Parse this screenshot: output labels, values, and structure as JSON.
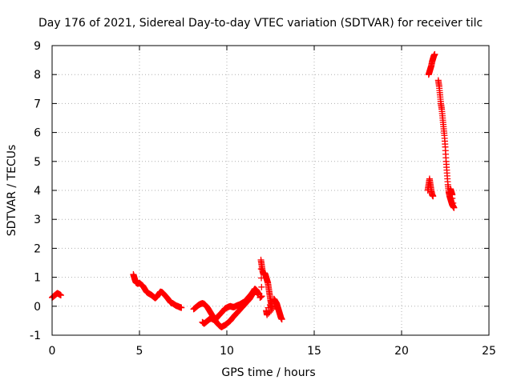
{
  "colors": {
    "series": "#ff0000",
    "axis": "#000000",
    "grid": "#b0b0b0"
  },
  "chart_data": {
    "type": "scatter",
    "title": "Day 176 of 2021, Sidereal Day-to-day VTEC variation (SDTVAR) for receiver tilc",
    "xlabel": "GPS time / hours",
    "ylabel": "SDTVAR / TECUs",
    "xlim": [
      0,
      25
    ],
    "ylim": [
      -1,
      9
    ],
    "xticks": [
      0,
      5,
      10,
      15,
      20,
      25
    ],
    "yticks": [
      -1,
      0,
      1,
      2,
      3,
      4,
      5,
      6,
      7,
      8,
      9
    ],
    "grid": true,
    "marker": "plus",
    "series": [
      {
        "name": "SDTVAR",
        "segments": [
          [
            [
              0.0,
              0.3
            ],
            [
              0.1,
              0.35
            ],
            [
              0.2,
              0.4
            ],
            [
              0.3,
              0.45
            ],
            [
              0.4,
              0.42
            ],
            [
              0.5,
              0.38
            ]
          ],
          [
            [
              4.65,
              1.1
            ],
            [
              4.7,
              1.0
            ],
            [
              4.75,
              0.9
            ],
            [
              4.8,
              0.82
            ],
            [
              4.9,
              0.78
            ],
            [
              5.0,
              0.8
            ],
            [
              5.1,
              0.75
            ],
            [
              5.2,
              0.7
            ],
            [
              5.3,
              0.6
            ],
            [
              5.4,
              0.5
            ],
            [
              5.5,
              0.45
            ],
            [
              5.6,
              0.42
            ],
            [
              5.7,
              0.38
            ],
            [
              5.8,
              0.33
            ],
            [
              5.9,
              0.28
            ],
            [
              6.0,
              0.33
            ],
            [
              6.1,
              0.42
            ],
            [
              6.2,
              0.5
            ],
            [
              6.3,
              0.48
            ],
            [
              6.4,
              0.42
            ],
            [
              6.5,
              0.35
            ],
            [
              6.6,
              0.28
            ],
            [
              6.7,
              0.2
            ],
            [
              6.8,
              0.12
            ],
            [
              6.9,
              0.1
            ],
            [
              7.0,
              0.06
            ],
            [
              7.1,
              0.02
            ],
            [
              7.2,
              0.0
            ],
            [
              7.3,
              -0.03
            ],
            [
              7.4,
              -0.05
            ]
          ],
          [
            [
              8.1,
              -0.1
            ],
            [
              8.2,
              -0.05
            ],
            [
              8.3,
              0.0
            ],
            [
              8.4,
              0.05
            ],
            [
              8.5,
              0.08
            ],
            [
              8.6,
              0.1
            ],
            [
              8.7,
              0.08
            ],
            [
              8.8,
              0.02
            ],
            [
              8.9,
              -0.05
            ],
            [
              9.0,
              -0.15
            ],
            [
              9.1,
              -0.25
            ],
            [
              9.2,
              -0.35
            ],
            [
              9.3,
              -0.45
            ],
            [
              9.4,
              -0.55
            ],
            [
              9.5,
              -0.62
            ],
            [
              9.6,
              -0.68
            ],
            [
              9.7,
              -0.72
            ],
            [
              9.8,
              -0.68
            ],
            [
              9.9,
              -0.65
            ],
            [
              10.0,
              -0.6
            ],
            [
              10.1,
              -0.55
            ],
            [
              10.2,
              -0.5
            ],
            [
              10.3,
              -0.42
            ],
            [
              10.4,
              -0.35
            ],
            [
              10.5,
              -0.28
            ],
            [
              10.6,
              -0.22
            ],
            [
              10.7,
              -0.15
            ],
            [
              10.8,
              -0.08
            ],
            [
              10.9,
              -0.02
            ],
            [
              11.0,
              0.05
            ],
            [
              11.1,
              0.12
            ],
            [
              11.2,
              0.18
            ],
            [
              11.3,
              0.25
            ],
            [
              11.4,
              0.35
            ],
            [
              11.5,
              0.45
            ],
            [
              11.6,
              0.52
            ],
            [
              11.7,
              0.5
            ],
            [
              11.8,
              0.4
            ]
          ],
          [
            [
              8.6,
              -0.55
            ],
            [
              8.7,
              -0.6
            ],
            [
              8.8,
              -0.55
            ],
            [
              8.9,
              -0.5
            ],
            [
              9.0,
              -0.45
            ],
            [
              9.1,
              -0.42
            ],
            [
              9.2,
              -0.45
            ],
            [
              9.3,
              -0.48
            ],
            [
              9.4,
              -0.42
            ],
            [
              9.5,
              -0.35
            ],
            [
              9.6,
              -0.28
            ],
            [
              9.7,
              -0.22
            ],
            [
              9.8,
              -0.15
            ],
            [
              9.9,
              -0.08
            ],
            [
              10.0,
              -0.05
            ],
            [
              10.1,
              -0.02
            ],
            [
              10.2,
              0.0
            ],
            [
              10.3,
              -0.02
            ],
            [
              10.4,
              -0.03
            ],
            [
              10.5,
              0.0
            ],
            [
              10.6,
              0.03
            ],
            [
              10.7,
              0.05
            ],
            [
              10.8,
              0.08
            ],
            [
              10.9,
              0.12
            ],
            [
              11.0,
              0.15
            ],
            [
              11.1,
              0.2
            ],
            [
              11.2,
              0.28
            ],
            [
              11.3,
              0.35
            ],
            [
              11.4,
              0.42
            ],
            [
              11.5,
              0.5
            ],
            [
              11.6,
              0.6
            ],
            [
              11.7,
              0.55
            ],
            [
              11.8,
              0.45
            ]
          ],
          [
            [
              11.9,
              0.3
            ],
            [
              12.0,
              0.35
            ],
            [
              11.95,
              1.6
            ],
            [
              12.0,
              1.4
            ],
            [
              12.05,
              1.2
            ],
            [
              12.1,
              1.1
            ],
            [
              12.15,
              1.15
            ],
            [
              12.2,
              1.1
            ],
            [
              12.25,
              1.0
            ],
            [
              12.3,
              0.9
            ],
            [
              12.35,
              0.8
            ],
            [
              12.4,
              0.6
            ],
            [
              12.45,
              0.4
            ],
            [
              12.5,
              0.2
            ],
            [
              12.55,
              0.05
            ],
            [
              12.6,
              -0.1
            ],
            [
              12.3,
              -0.3
            ],
            [
              12.25,
              -0.15
            ],
            [
              12.7,
              0.25
            ],
            [
              12.75,
              0.2
            ],
            [
              12.8,
              0.15
            ],
            [
              12.85,
              0.1
            ],
            [
              12.9,
              0.0
            ],
            [
              12.95,
              -0.1
            ],
            [
              13.0,
              -0.2
            ],
            [
              13.05,
              -0.3
            ],
            [
              13.1,
              -0.4
            ],
            [
              13.15,
              -0.45
            ]
          ],
          [
            [
              21.55,
              8.0
            ],
            [
              21.6,
              8.1
            ],
            [
              21.65,
              8.2
            ],
            [
              21.7,
              8.3
            ],
            [
              21.75,
              8.45
            ],
            [
              21.8,
              8.55
            ],
            [
              21.85,
              8.65
            ],
            [
              21.9,
              8.7
            ]
          ],
          [
            [
              21.5,
              4.0
            ],
            [
              21.55,
              4.2
            ],
            [
              21.6,
              4.4
            ],
            [
              21.65,
              4.2
            ],
            [
              21.7,
              4.0
            ],
            [
              21.75,
              3.85
            ],
            [
              21.8,
              3.8
            ]
          ],
          [
            [
              22.1,
              7.8
            ],
            [
              22.15,
              7.6
            ],
            [
              22.2,
              7.3
            ],
            [
              22.25,
              7.0
            ],
            [
              22.3,
              6.8
            ],
            [
              22.35,
              6.5
            ],
            [
              22.4,
              6.2
            ],
            [
              22.45,
              5.9
            ],
            [
              22.5,
              5.5
            ],
            [
              22.55,
              5.0
            ],
            [
              22.6,
              4.6
            ],
            [
              22.65,
              4.2
            ],
            [
              22.7,
              3.95
            ],
            [
              22.75,
              3.8
            ],
            [
              22.8,
              3.7
            ],
            [
              22.85,
              3.6
            ],
            [
              22.9,
              3.5
            ],
            [
              22.95,
              3.45
            ],
            [
              23.0,
              3.4
            ],
            [
              22.8,
              4.05
            ],
            [
              22.85,
              3.95
            ],
            [
              22.9,
              3.85
            ]
          ]
        ]
      }
    ]
  }
}
